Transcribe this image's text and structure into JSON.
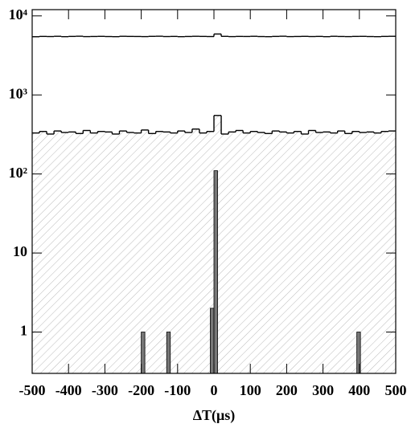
{
  "chart_data": {
    "type": "histogram",
    "x_label": "ΔT(μs)",
    "xlim": [
      -500,
      500
    ],
    "xticks": [
      -500,
      -400,
      -300,
      -200,
      -100,
      0,
      100,
      200,
      300,
      400,
      500
    ],
    "ylim": [
      0.3,
      12000
    ],
    "log_y": true,
    "yticks": [
      1,
      10,
      {
        "value": 100,
        "label": "10²"
      },
      {
        "value": 1000,
        "label": "10³"
      },
      {
        "value": 10000,
        "label": "10⁴"
      }
    ],
    "series": [
      {
        "kind": "step",
        "color": "#000000",
        "bins": [
          -500,
          -480,
          -460,
          -440,
          -420,
          -400,
          -380,
          -360,
          -340,
          -320,
          -300,
          -280,
          -260,
          -240,
          -220,
          -200,
          -180,
          -160,
          -140,
          -120,
          -100,
          -80,
          -60,
          -40,
          -20,
          0,
          20,
          40,
          60,
          80,
          100,
          120,
          140,
          160,
          180,
          200,
          220,
          240,
          260,
          280,
          300,
          320,
          340,
          360,
          380,
          400,
          420,
          440,
          460,
          480,
          500
        ],
        "values": [
          5450,
          5500,
          5480,
          5520,
          5460,
          5500,
          5530,
          5470,
          5490,
          5510,
          5480,
          5460,
          5520,
          5500,
          5490,
          5470,
          5510,
          5530,
          5480,
          5500,
          5460,
          5490,
          5520,
          5500,
          5480,
          5900,
          5510,
          5470,
          5500,
          5490,
          5520,
          5480,
          5460,
          5500,
          5530,
          5470,
          5490,
          5510,
          5480,
          5500,
          5460,
          5520,
          5490,
          5470,
          5500,
          5510,
          5480,
          5460,
          5500,
          5520
        ]
      },
      {
        "kind": "hatched",
        "color": "#000000",
        "bins": [
          -500,
          -480,
          -460,
          -440,
          -420,
          -400,
          -380,
          -360,
          -340,
          -320,
          -300,
          -280,
          -260,
          -240,
          -220,
          -200,
          -180,
          -160,
          -140,
          -120,
          -100,
          -80,
          -60,
          -40,
          -20,
          0,
          20,
          40,
          60,
          80,
          100,
          120,
          140,
          160,
          180,
          200,
          220,
          240,
          260,
          280,
          300,
          320,
          340,
          360,
          380,
          400,
          420,
          440,
          460,
          480,
          500
        ],
        "values": [
          330,
          345,
          320,
          350,
          335,
          340,
          325,
          355,
          330,
          345,
          340,
          320,
          350,
          335,
          330,
          360,
          325,
          345,
          340,
          330,
          350,
          335,
          370,
          330,
          345,
          550,
          320,
          340,
          355,
          330,
          345,
          335,
          325,
          350,
          340,
          330,
          345,
          320,
          355,
          335,
          340,
          330,
          350,
          325,
          345,
          335,
          340,
          330,
          345,
          350
        ]
      },
      {
        "kind": "bars",
        "color": "#777777",
        "x": [
          -195,
          -125,
          -5,
          5,
          398
        ],
        "values": [
          1,
          1,
          2,
          110,
          1
        ]
      }
    ]
  }
}
